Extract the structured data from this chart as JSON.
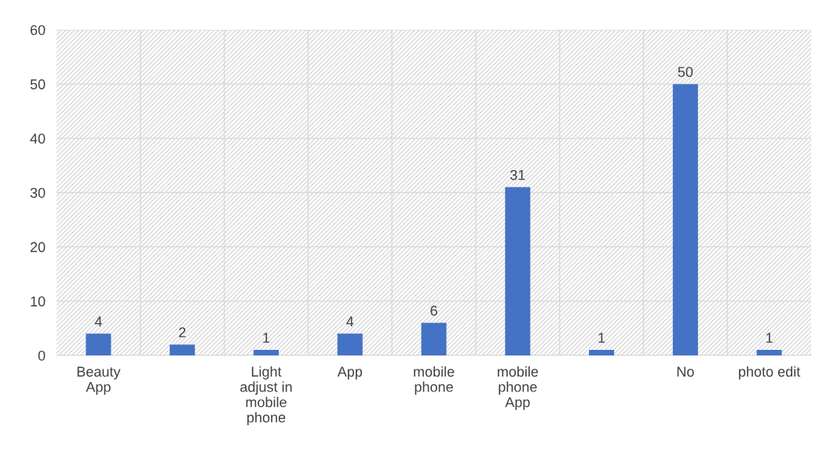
{
  "chart_data": {
    "type": "bar",
    "categories": [
      "Beauty\nApp",
      null,
      "Light\nadjust in\nmobile\nphone",
      "App",
      "mobile\nphone",
      "mobile\nphone\nApp",
      null,
      "No",
      "photo edit"
    ],
    "values": [
      4,
      2,
      1,
      4,
      6,
      31,
      1,
      50,
      1
    ],
    "color": "#4472c4",
    "ylim": [
      0,
      60
    ],
    "yticks": [
      0,
      10,
      20,
      30,
      40,
      50,
      60
    ],
    "grid": true,
    "data_labels": true
  }
}
